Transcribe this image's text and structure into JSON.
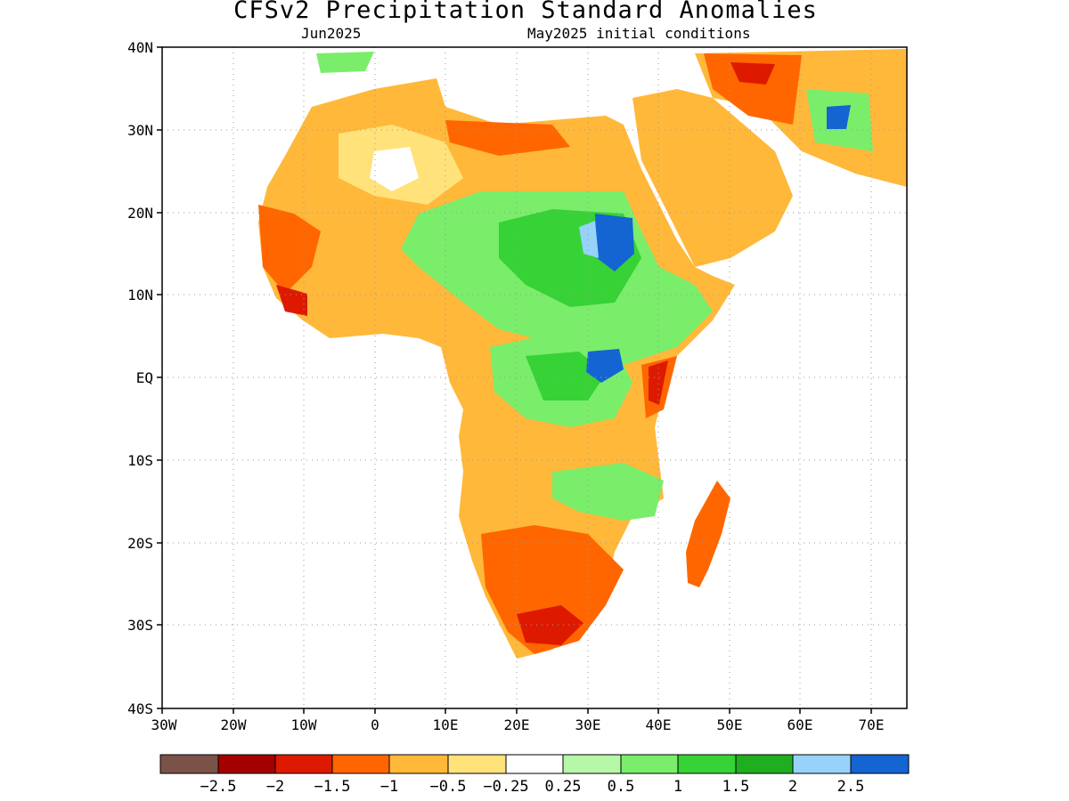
{
  "title": "CFSv2 Precipitation Standard Anomalies",
  "subtitle_left": "Jun2025",
  "subtitle_right": "May2025 initial conditions",
  "map": {
    "lat_ticks": [
      "40N",
      "30N",
      "20N",
      "10N",
      "EQ",
      "10S",
      "20S",
      "30S",
      "40S"
    ],
    "lon_ticks": [
      "30W",
      "20W",
      "10W",
      "0",
      "10E",
      "20E",
      "30E",
      "40E",
      "50E",
      "60E",
      "70E"
    ],
    "lat_range": [
      -40,
      40
    ],
    "lon_range": [
      -30,
      75
    ],
    "grid": "dotted"
  },
  "colorbar": {
    "colors": [
      "#7b5247",
      "#a50000",
      "#dd1a00",
      "#ff6600",
      "#ffb83a",
      "#ffe27a",
      "#ffffff",
      "#b7f7a8",
      "#7aed6b",
      "#37d236",
      "#1fae1f",
      "#96d2fa",
      "#1464d2"
    ],
    "labels": [
      "−2.5",
      "−2",
      "−1.5",
      "−1",
      "−0.5",
      "−0.25",
      "0.25",
      "0.5",
      "1",
      "1.5",
      "2",
      "2.5"
    ]
  },
  "anomaly_regions": [
    {
      "name": "mediterranean-africa",
      "level": "-0.5"
    },
    {
      "name": "west-africa-coast",
      "level": "-1.5"
    },
    {
      "name": "sudan-ethiopia",
      "level": "1.5"
    },
    {
      "name": "lake-victoria",
      "level": "2.5"
    },
    {
      "name": "east-africa-coast",
      "level": "-2"
    },
    {
      "name": "southern-africa",
      "level": "-1.5"
    },
    {
      "name": "iran",
      "level": "2.5"
    }
  ]
}
